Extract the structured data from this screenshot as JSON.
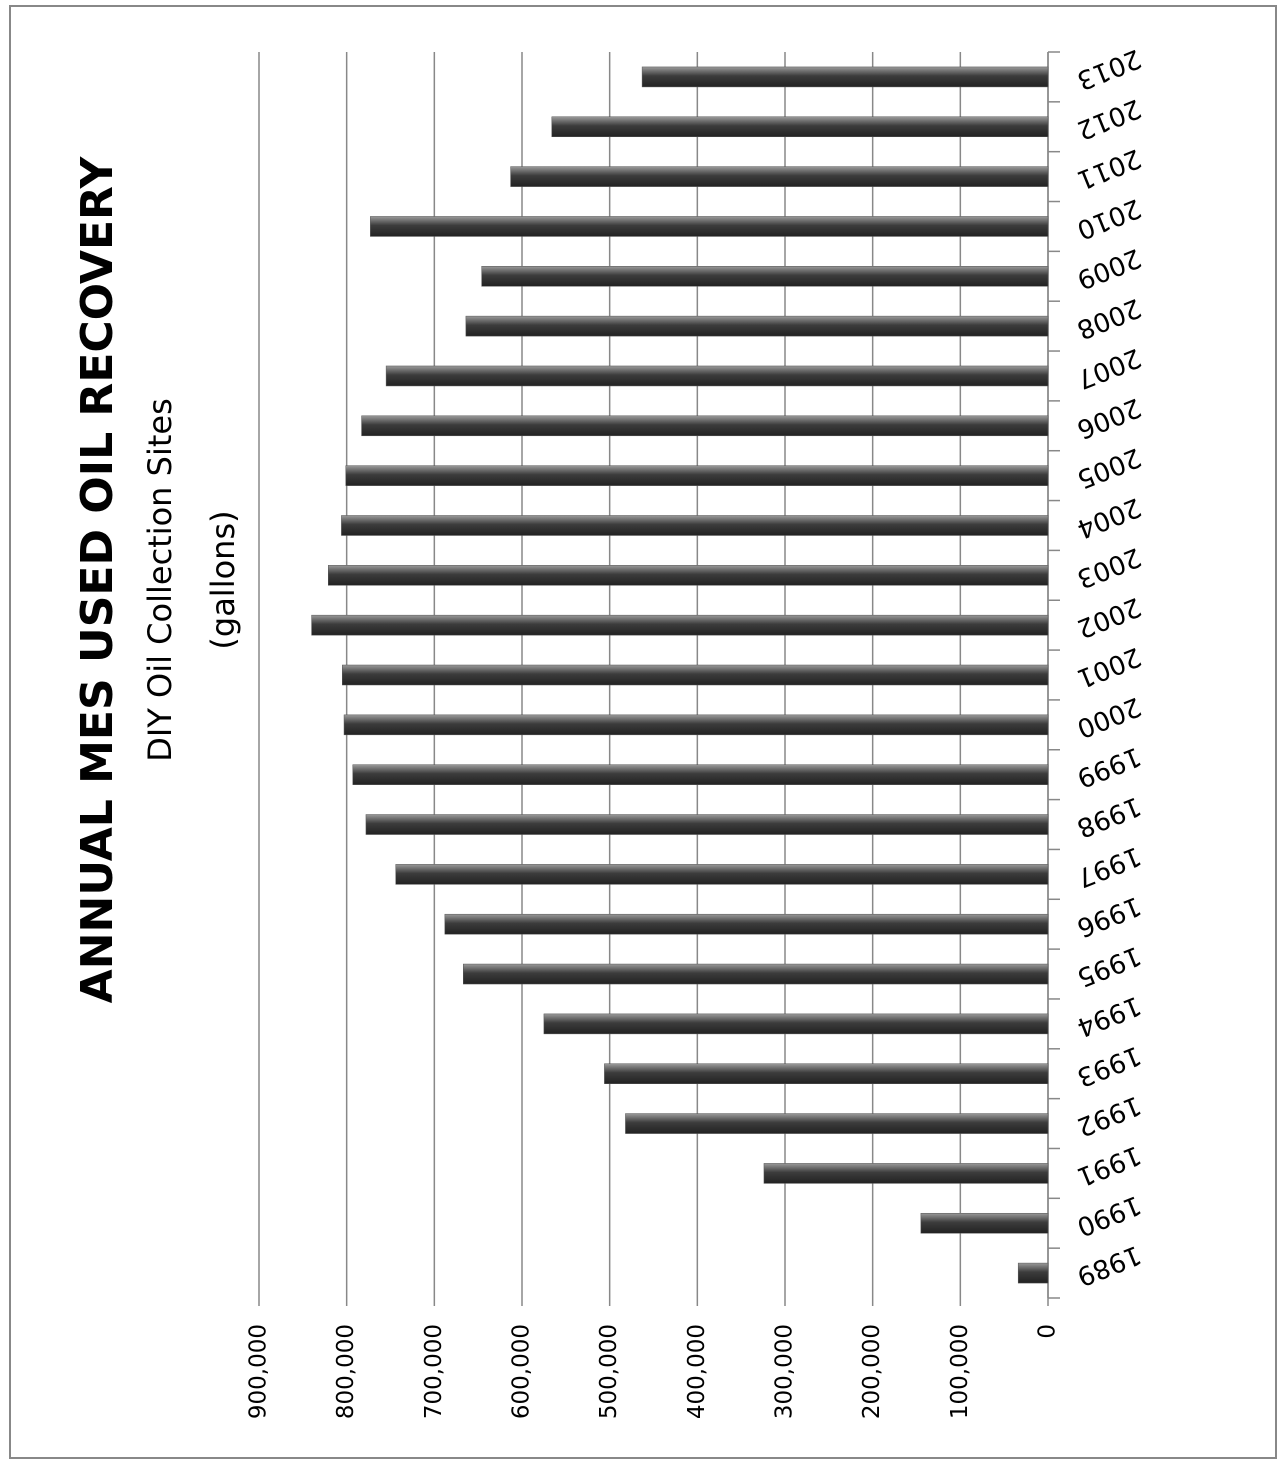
{
  "chart_data": {
    "type": "bar",
    "orientation": "horizontal",
    "title": "ANNUAL MES USED OIL RECOVERY",
    "subtitle": [
      "DIY Oil Collection Sites",
      "(gallons)"
    ],
    "categories": [
      "1989",
      "1990",
      "1991",
      "1992",
      "1993",
      "1994",
      "1995",
      "1996",
      "1997",
      "1998",
      "1999",
      "2000",
      "2001",
      "2002",
      "2003",
      "2004",
      "2005",
      "2006",
      "2007",
      "2008",
      "2009",
      "2010",
      "2011",
      "2012",
      "2013"
    ],
    "values": [
      34000,
      145000,
      324000,
      482000,
      506000,
      575000,
      667000,
      688000,
      744000,
      778000,
      793000,
      803000,
      805000,
      840000,
      821000,
      806000,
      801000,
      783000,
      755000,
      664000,
      646000,
      773000,
      613000,
      566000,
      463000
    ],
    "color": "#555555",
    "ylim": [
      0,
      900000
    ],
    "yticks": [
      0,
      {
        "value": 100000,
        "label": "100,000"
      },
      {
        "value": 200000,
        "label": "200,000"
      },
      {
        "value": 300000,
        "label": "300,000"
      },
      {
        "value": 400000,
        "label": "400,000"
      },
      {
        "value": 500000,
        "label": "500,000"
      },
      {
        "value": 600000,
        "label": "600,000"
      },
      {
        "value": 700000,
        "label": "700,000"
      },
      {
        "value": 800000,
        "label": "800,000"
      },
      {
        "value": 900000,
        "label": "900,000"
      }
    ],
    "grid": true
  }
}
